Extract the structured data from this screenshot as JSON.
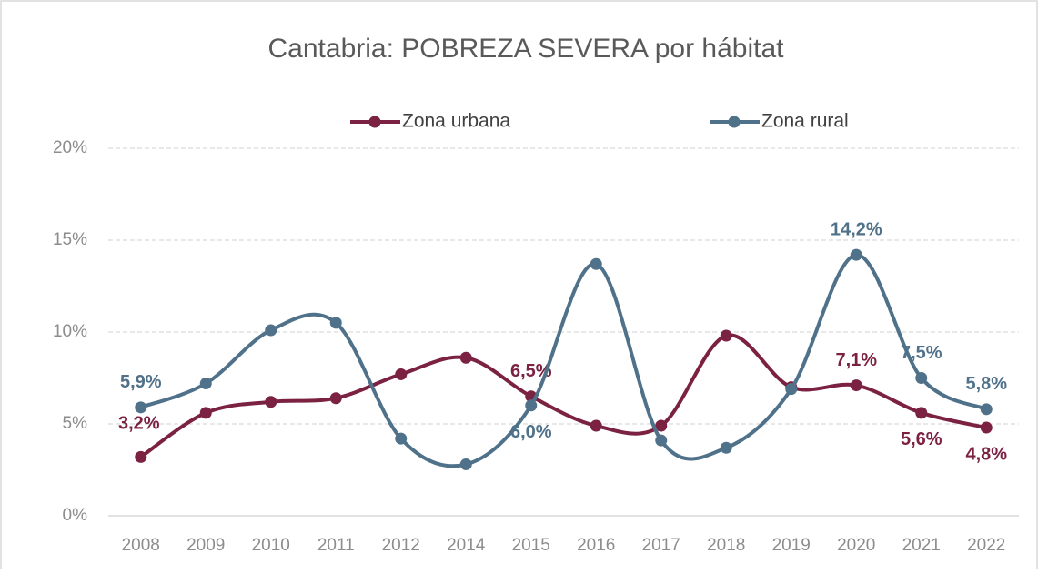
{
  "chart_data": {
    "type": "line",
    "title": "Cantabria: POBREZA SEVERA por hábitat",
    "categories": [
      "2008",
      "2009",
      "2010",
      "2011",
      "2012",
      "2014",
      "2015",
      "2016",
      "2017",
      "2018",
      "2019",
      "2020",
      "2021",
      "2022"
    ],
    "series": [
      {
        "name": "Zona urbana",
        "color": "#7b2142",
        "values": [
          3.2,
          5.6,
          6.2,
          6.4,
          7.7,
          8.6,
          6.5,
          4.9,
          4.9,
          9.8,
          7.0,
          7.1,
          5.6,
          4.8
        ],
        "value_labels": [
          "3,2%",
          null,
          null,
          null,
          null,
          null,
          "6,5%",
          null,
          null,
          null,
          null,
          "7,1%",
          "5,6%",
          "4,8%"
        ]
      },
      {
        "name": "Zona rural",
        "color": "#4f7189",
        "values": [
          5.9,
          7.2,
          10.1,
          10.5,
          4.2,
          2.8,
          6.0,
          13.7,
          4.1,
          3.7,
          6.9,
          14.2,
          7.5,
          5.8
        ],
        "value_labels": [
          "5,9%",
          null,
          null,
          null,
          null,
          null,
          "6,0%",
          null,
          null,
          null,
          null,
          "14,2%",
          "7,5%",
          "5,8%"
        ]
      }
    ],
    "ylim": [
      0,
      20
    ],
    "yticks": [
      {
        "value": 0,
        "label": "0%"
      },
      {
        "value": 5,
        "label": "5%"
      },
      {
        "value": 10,
        "label": "10%"
      },
      {
        "value": 15,
        "label": "15%"
      },
      {
        "value": 20,
        "label": "20%"
      }
    ],
    "grid": true,
    "legend": "top",
    "smooth": true
  }
}
